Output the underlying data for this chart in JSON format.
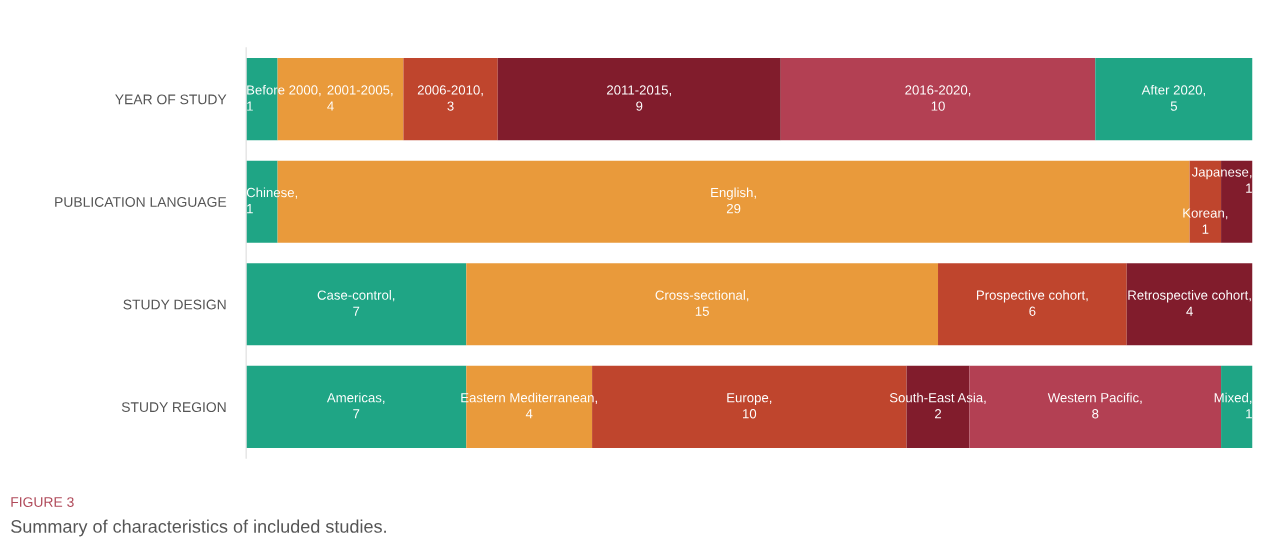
{
  "chart_data": {
    "type": "bar",
    "orientation": "horizontal",
    "stacked": true,
    "tick_labels": "y",
    "legend": false,
    "categories": [
      "YEAR OF STUDY",
      "PUBLICATION LANGUAGE",
      "STUDY DESIGN",
      "STUDY REGION"
    ],
    "series": [
      {
        "values": [
          1,
          1,
          7,
          7
        ],
        "colors": [
          "#1fa585",
          "#1fa585",
          "#1fa585",
          "#1fa585"
        ],
        "value_labels": [
          "Before 2000,\n1",
          "Chinese,\n1",
          "Case-control,\n7",
          "Americas,\n7"
        ]
      },
      {
        "values": [
          4,
          29,
          15,
          4
        ],
        "colors": [
          "#e99a3b",
          "#e99a3b",
          "#e99a3b",
          "#e99a3b"
        ],
        "value_labels": [
          "2001-2005,\n4",
          "English,\n29",
          "Cross-sectional,\n15",
          "Eastern Mediterranean,\n4"
        ]
      },
      {
        "values": [
          3,
          1,
          6,
          10
        ],
        "colors": [
          "#bf452d",
          "#bf452d",
          "#bf452d",
          "#bf452d"
        ],
        "value_labels": [
          "2006-2010,\n3",
          "Korean,\n1",
          "Prospective cohort,\n6",
          "Europe,\n10"
        ]
      },
      {
        "values": [
          9,
          1,
          4,
          2
        ],
        "colors": [
          "#811c2c",
          "#811c2c",
          "#811c2c",
          "#811c2c"
        ],
        "value_labels": [
          "2011-2015,\n9",
          "Japanese,\n1",
          "Retrospective cohort,\n4",
          "South-East Asia,\n2"
        ]
      },
      {
        "values": [
          10,
          null,
          null,
          8
        ],
        "colors": [
          "#b34053",
          null,
          null,
          "#b34053"
        ],
        "value_labels": [
          "2016-2020,\n10",
          null,
          null,
          "Western Pacific,\n8"
        ]
      },
      {
        "values": [
          5,
          null,
          null,
          1
        ],
        "colors": [
          "#1fa585",
          null,
          null,
          "#1fa585"
        ],
        "value_labels": [
          "After 2020,\n5",
          null,
          null,
          "Mixed,\n1"
        ]
      }
    ],
    "annotations": [
      "FIGURE 3",
      "Summary of characteristics of included studies."
    ]
  }
}
